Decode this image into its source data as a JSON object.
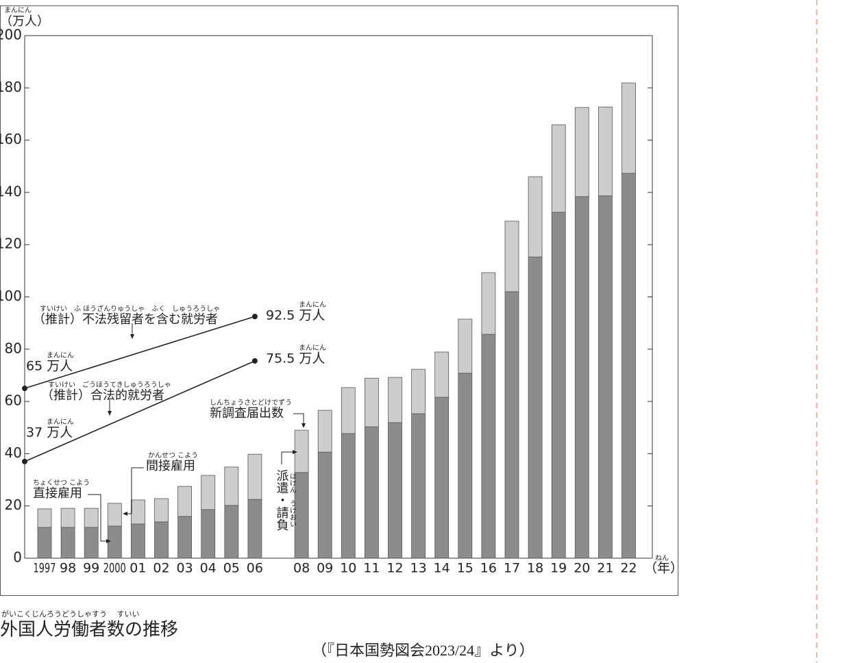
{
  "chart_data": {
    "type": "bar",
    "stacked": true,
    "title": "外国人労働者数の推移",
    "title_ruby": "がいこくじんろうどうしゃすう　 すいい",
    "y_label": "（万人）",
    "y_label_ruby": "まんにん",
    "x_label": "（年）",
    "x_label_ruby": "ねん",
    "source": "（『日本国勢図会2023/24』より）",
    "categories": [
      "1997",
      "98",
      "99",
      "2000",
      "01",
      "02",
      "03",
      "04",
      "05",
      "06",
      null,
      "08",
      "09",
      "10",
      "11",
      "12",
      "13",
      "14",
      "15",
      "16",
      "17",
      "18",
      "19",
      "20",
      "21",
      "22"
    ],
    "series": [
      {
        "name": "直接雇用",
        "name_ruby": "ちょくせつ こよう",
        "color": "#8c8c8c",
        "values": [
          11.8,
          11.8,
          11.8,
          12.3,
          13.1,
          13.9,
          16.0,
          18.6,
          20.2,
          22.5,
          null,
          32.8,
          40.6,
          47.7,
          50.3,
          51.9,
          55.3,
          61.6,
          70.8,
          85.7,
          102.0,
          115.3,
          132.4,
          138.4,
          138.7,
          147.3
        ]
      },
      {
        "name": "間接雇用",
        "name_ruby": "かんせつ こよう",
        "color": "#cdcdcd",
        "values": [
          7.1,
          7.3,
          7.3,
          8.7,
          9.2,
          8.9,
          11.5,
          13.1,
          14.7,
          17.3,
          null,
          16.2,
          16.0,
          17.6,
          18.6,
          17.3,
          17.0,
          17.3,
          20.7,
          23.6,
          27.0,
          30.7,
          33.5,
          34.1,
          34.0,
          34.6
        ]
      }
    ],
    "annotations": [
      {
        "text": "新調査届出数",
        "ruby": "しんちょうさとどけでずう"
      },
      {
        "text": "派遣・請負",
        "ruby": "はけん　うけおい"
      }
    ],
    "unit_ruby": "まんにん",
    "estimate_lines": [
      {
        "name": "（推計）不法残留者を含む就労者",
        "ruby": "すいけい　ふ ほうざんりゅうしゃ　ふく　しゅうろうしゃ",
        "start": 65,
        "end": 92.5,
        "start_label": "65 万人",
        "end_label": "92.5 万人"
      },
      {
        "name": "（推計）合法的就労者",
        "ruby": "すいけい　ごうほうてきしゅうろうしゃ",
        "start": 37,
        "end": 75.5,
        "start_label": "37 万人",
        "end_label": "75.5 万人"
      }
    ],
    "ylim": [
      0,
      200
    ],
    "yticks": [
      0,
      20,
      40,
      60,
      80,
      100,
      120,
      140,
      160,
      180,
      200
    ]
  }
}
